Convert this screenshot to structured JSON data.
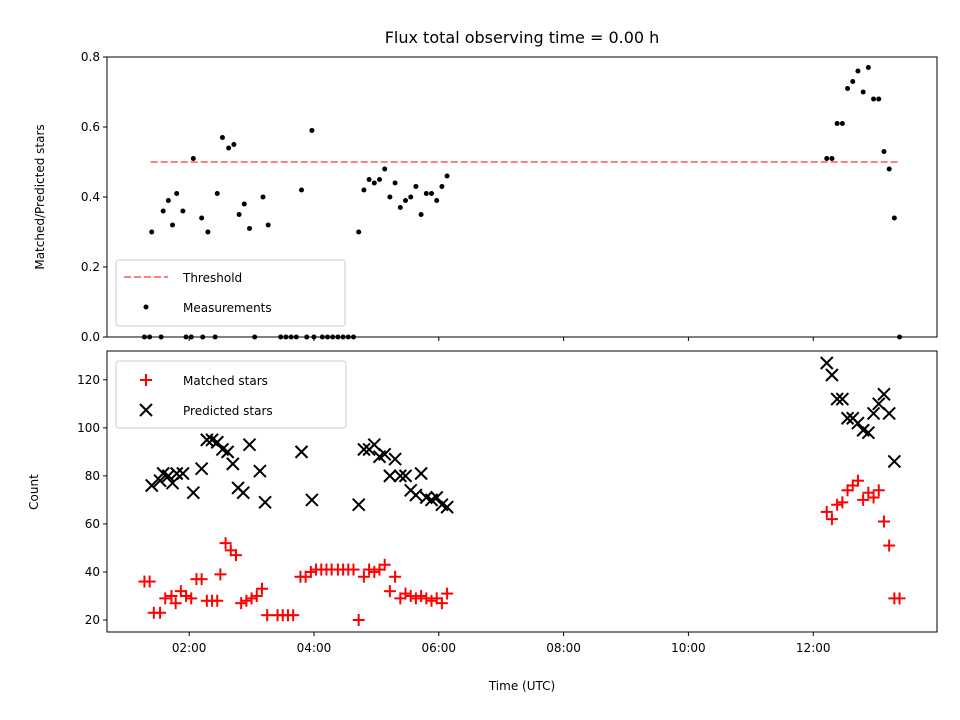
{
  "chart_data": [
    {
      "panel": "top",
      "type": "scatter",
      "title": "Flux total observing time = 0.00 h",
      "xlabel": "",
      "ylabel": "Matched/Predicted stars",
      "xlim": [
        "00:41",
        "13:59"
      ],
      "ylim": [
        0,
        0.8
      ],
      "yticks": [
        "0.0",
        "0.2",
        "0.4",
        "0.6",
        "0.8"
      ],
      "xticks": [
        "02:00",
        "04:00",
        "06:00",
        "08:00",
        "10:00",
        "12:00"
      ],
      "xtick_labels_visible": false,
      "grid": false,
      "legend_position": "lower-left",
      "threshold": {
        "name": "Threshold",
        "value": 0.5,
        "x_start": "01:23",
        "x_end": "13:23",
        "color": "#ff7f7f",
        "style": "dashed"
      },
      "series": [
        {
          "name": "Measurements",
          "marker": "dot",
          "color": "#000000",
          "points": [
            [
              "01:17",
              0
            ],
            [
              "01:22",
              0
            ],
            [
              "01:33",
              0
            ],
            [
              "01:24",
              0.3
            ],
            [
              "01:35",
              0.36
            ],
            [
              "01:40",
              0.39
            ],
            [
              "01:44",
              0.32
            ],
            [
              "01:48",
              0.41
            ],
            [
              "01:54",
              0.36
            ],
            [
              "02:04",
              0.51
            ],
            [
              "02:12",
              0.34
            ],
            [
              "02:18",
              0.3
            ],
            [
              "02:27",
              0.41
            ],
            [
              "02:32",
              0.57
            ],
            [
              "02:38",
              0.54
            ],
            [
              "02:43",
              0.55
            ],
            [
              "02:48",
              0.35
            ],
            [
              "02:53",
              0.38
            ],
            [
              "02:58",
              0.31
            ],
            [
              "03:11",
              0.4
            ],
            [
              "03:16",
              0.32
            ],
            [
              "03:48",
              0.42
            ],
            [
              "03:58",
              0.59
            ],
            [
              "01:57",
              0
            ],
            [
              "02:02",
              0
            ],
            [
              "02:13",
              0
            ],
            [
              "02:25",
              0
            ],
            [
              "03:03",
              0
            ],
            [
              "03:28",
              0
            ],
            [
              "03:33",
              0
            ],
            [
              "03:38",
              0
            ],
            [
              "03:43",
              0
            ],
            [
              "03:53",
              0
            ],
            [
              "04:00",
              0
            ],
            [
              "04:08",
              0
            ],
            [
              "04:13",
              0
            ],
            [
              "04:18",
              0
            ],
            [
              "04:23",
              0
            ],
            [
              "04:28",
              0
            ],
            [
              "04:33",
              0
            ],
            [
              "04:38",
              0
            ],
            [
              "04:43",
              0.3
            ],
            [
              "04:48",
              0.42
            ],
            [
              "04:53",
              0.45
            ],
            [
              "04:58",
              0.44
            ],
            [
              "05:03",
              0.45
            ],
            [
              "05:08",
              0.48
            ],
            [
              "05:13",
              0.4
            ],
            [
              "05:18",
              0.44
            ],
            [
              "05:23",
              0.37
            ],
            [
              "05:28",
              0.39
            ],
            [
              "05:33",
              0.4
            ],
            [
              "05:38",
              0.43
            ],
            [
              "05:43",
              0.35
            ],
            [
              "05:48",
              0.41
            ],
            [
              "05:53",
              0.41
            ],
            [
              "05:58",
              0.39
            ],
            [
              "06:03",
              0.43
            ],
            [
              "06:08",
              0.46
            ],
            [
              "12:13",
              0.51
            ],
            [
              "12:18",
              0.51
            ],
            [
              "12:23",
              0.61
            ],
            [
              "12:28",
              0.61
            ],
            [
              "12:33",
              0.71
            ],
            [
              "12:38",
              0.73
            ],
            [
              "12:43",
              0.76
            ],
            [
              "12:48",
              0.7
            ],
            [
              "12:53",
              0.77
            ],
            [
              "12:58",
              0.68
            ],
            [
              "13:03",
              0.68
            ],
            [
              "13:08",
              0.53
            ],
            [
              "13:13",
              0.48
            ],
            [
              "13:18",
              0.34
            ],
            [
              "13:23",
              0
            ]
          ]
        }
      ]
    },
    {
      "panel": "bottom",
      "type": "scatter",
      "title": "",
      "xlabel": "Time (UTC)",
      "ylabel": "Count",
      "xlim": [
        "00:41",
        "13:59"
      ],
      "ylim": [
        15,
        132
      ],
      "yticks": [
        "20",
        "40",
        "60",
        "80",
        "100",
        "120"
      ],
      "xticks": [
        "02:00",
        "04:00",
        "06:00",
        "08:00",
        "10:00",
        "12:00"
      ],
      "grid": false,
      "legend_position": "upper-left",
      "series": [
        {
          "name": "Matched stars",
          "marker": "plus",
          "color": "#ff0000",
          "points": [
            [
              "01:17",
              36
            ],
            [
              "01:22",
              36
            ],
            [
              "01:26",
              23
            ],
            [
              "01:32",
              23
            ],
            [
              "01:37",
              29
            ],
            [
              "01:43",
              30
            ],
            [
              "01:47",
              27
            ],
            [
              "01:52",
              32
            ],
            [
              "01:57",
              30
            ],
            [
              "02:02",
              29
            ],
            [
              "02:07",
              37
            ],
            [
              "02:12",
              37
            ],
            [
              "02:17",
              28
            ],
            [
              "02:22",
              28
            ],
            [
              "02:27",
              28
            ],
            [
              "02:30",
              39
            ],
            [
              "02:35",
              52
            ],
            [
              "02:40",
              49
            ],
            [
              "02:45",
              47
            ],
            [
              "02:50",
              27
            ],
            [
              "02:55",
              28
            ],
            [
              "03:00",
              29
            ],
            [
              "03:05",
              30
            ],
            [
              "03:10",
              33
            ],
            [
              "03:15",
              22
            ],
            [
              "03:25",
              22
            ],
            [
              "03:30",
              22
            ],
            [
              "03:35",
              22
            ],
            [
              "03:40",
              22
            ],
            [
              "03:47",
              38
            ],
            [
              "03:52",
              38
            ],
            [
              "03:57",
              40
            ],
            [
              "04:02",
              41
            ],
            [
              "04:07",
              41
            ],
            [
              "04:12",
              41
            ],
            [
              "04:17",
              41
            ],
            [
              "04:23",
              41
            ],
            [
              "04:28",
              41
            ],
            [
              "04:33",
              41
            ],
            [
              "04:38",
              41
            ],
            [
              "04:43",
              20
            ],
            [
              "04:48",
              38
            ],
            [
              "04:53",
              41
            ],
            [
              "04:58",
              40
            ],
            [
              "05:03",
              41
            ],
            [
              "05:08",
              43
            ],
            [
              "05:13",
              32
            ],
            [
              "05:18",
              38
            ],
            [
              "05:23",
              29
            ],
            [
              "05:28",
              31
            ],
            [
              "05:33",
              30
            ],
            [
              "05:38",
              29
            ],
            [
              "05:43",
              30
            ],
            [
              "05:48",
              29
            ],
            [
              "05:53",
              28
            ],
            [
              "05:58",
              29
            ],
            [
              "06:03",
              27
            ],
            [
              "06:08",
              31
            ],
            [
              "12:13",
              65
            ],
            [
              "12:18",
              62
            ],
            [
              "12:23",
              68
            ],
            [
              "12:28",
              69
            ],
            [
              "12:33",
              74
            ],
            [
              "12:38",
              76
            ],
            [
              "12:43",
              78
            ],
            [
              "12:48",
              70
            ],
            [
              "12:53",
              73
            ],
            [
              "12:58",
              71
            ],
            [
              "13:03",
              74
            ],
            [
              "13:08",
              61
            ],
            [
              "13:13",
              51
            ],
            [
              "13:18",
              29
            ],
            [
              "13:23",
              29
            ]
          ]
        },
        {
          "name": "Predicted stars",
          "marker": "x",
          "color": "#000000",
          "points": [
            [
              "01:24",
              76
            ],
            [
              "01:32",
              78
            ],
            [
              "01:35",
              81
            ],
            [
              "01:40",
              80
            ],
            [
              "01:44",
              77
            ],
            [
              "01:48",
              81
            ],
            [
              "01:54",
              81
            ],
            [
              "02:04",
              73
            ],
            [
              "02:12",
              83
            ],
            [
              "02:17",
              95
            ],
            [
              "02:22",
              95
            ],
            [
              "02:27",
              94
            ],
            [
              "02:32",
              91
            ],
            [
              "02:37",
              90
            ],
            [
              "02:42",
              85
            ],
            [
              "02:47",
              75
            ],
            [
              "02:52",
              73
            ],
            [
              "02:58",
              93
            ],
            [
              "03:08",
              82
            ],
            [
              "03:13",
              69
            ],
            [
              "03:48",
              90
            ],
            [
              "03:58",
              70
            ],
            [
              "04:43",
              68
            ],
            [
              "04:48",
              91
            ],
            [
              "04:53",
              91
            ],
            [
              "04:58",
              93
            ],
            [
              "05:03",
              88
            ],
            [
              "05:08",
              89
            ],
            [
              "05:13",
              80
            ],
            [
              "05:18",
              87
            ],
            [
              "05:23",
              80
            ],
            [
              "05:28",
              80
            ],
            [
              "05:33",
              74
            ],
            [
              "05:38",
              72
            ],
            [
              "05:43",
              81
            ],
            [
              "05:48",
              71
            ],
            [
              "05:53",
              70
            ],
            [
              "05:58",
              71
            ],
            [
              "06:03",
              68
            ],
            [
              "06:08",
              67
            ],
            [
              "12:13",
              127
            ],
            [
              "12:18",
              122
            ],
            [
              "12:23",
              112
            ],
            [
              "12:28",
              112
            ],
            [
              "12:33",
              104
            ],
            [
              "12:38",
              104
            ],
            [
              "12:43",
              102
            ],
            [
              "12:48",
              99
            ],
            [
              "12:53",
              98
            ],
            [
              "12:58",
              106
            ],
            [
              "13:03",
              110
            ],
            [
              "13:08",
              114
            ],
            [
              "13:13",
              106
            ],
            [
              "13:18",
              86
            ]
          ]
        }
      ]
    }
  ]
}
